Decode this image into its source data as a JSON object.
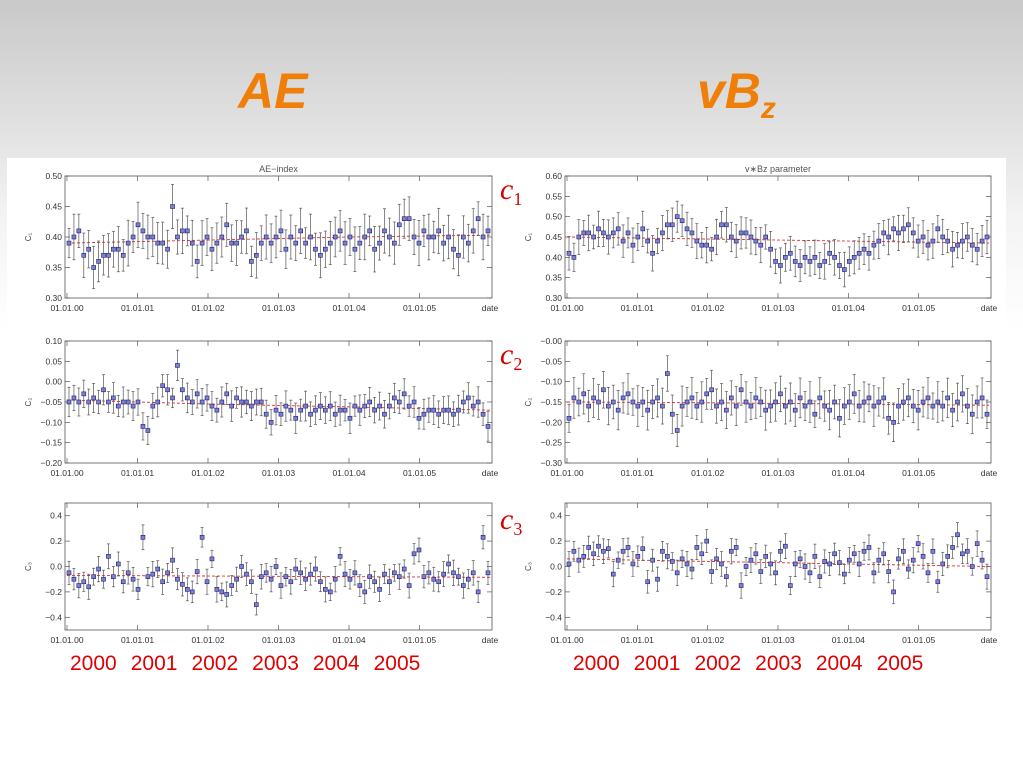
{
  "slide": {
    "col_left_title": "AE",
    "col_right_title_main": "vB",
    "col_right_title_sub": "z",
    "rows": [
      {
        "main": "c",
        "sub": "1"
      },
      {
        "main": "c",
        "sub": "2"
      },
      {
        "main": "c",
        "sub": "3"
      }
    ],
    "years_left": [
      "2000",
      "2001",
      "2002",
      "2003",
      "2004",
      "2005"
    ],
    "years_right": [
      "2000",
      "2001",
      "2002",
      "2003",
      "2004",
      "2005"
    ]
  },
  "colors": {
    "title": "#f07f09",
    "row_label": "#d40000",
    "years": "#e00000",
    "marker_fill": "#7b7fd8",
    "marker_edge": "#202060",
    "trend": "#e03030",
    "errorbar": "#555555"
  },
  "chart_data": [
    {
      "id": "ae-c1",
      "type": "scatter",
      "title": "AE−index",
      "ylabel": "C₁",
      "xlabel": "date",
      "ylim": [
        0.3,
        0.5
      ],
      "yticks": [
        "0.50",
        "0.45",
        "0.40",
        "0.35",
        "0.30"
      ],
      "ytick_values": [
        0.5,
        0.45,
        0.4,
        0.35,
        0.3
      ],
      "xticks": [
        "01.01.00",
        "01.01.01",
        "01.01.02",
        "01.01.03",
        "01.01.04",
        "01.01.05",
        "date"
      ],
      "trend": [
        0.39,
        0.395,
        0.4,
        0.403
      ],
      "y": [
        0.39,
        0.4,
        0.41,
        0.37,
        0.38,
        0.35,
        0.36,
        0.37,
        0.37,
        0.38,
        0.38,
        0.37,
        0.39,
        0.4,
        0.42,
        0.41,
        0.4,
        0.4,
        0.39,
        0.39,
        0.38,
        0.45,
        0.4,
        0.41,
        0.41,
        0.39,
        0.36,
        0.39,
        0.4,
        0.38,
        0.39,
        0.4,
        0.42,
        0.39,
        0.39,
        0.4,
        0.41,
        0.36,
        0.37,
        0.39,
        0.4,
        0.39,
        0.4,
        0.41,
        0.38,
        0.4,
        0.39,
        0.41,
        0.39,
        0.4,
        0.38,
        0.37,
        0.38,
        0.39,
        0.4,
        0.41,
        0.39,
        0.4,
        0.38,
        0.39,
        0.4,
        0.41,
        0.38,
        0.39,
        0.41,
        0.4,
        0.39,
        0.42,
        0.43,
        0.43,
        0.4,
        0.39,
        0.41,
        0.4,
        0.4,
        0.41,
        0.39,
        0.4,
        0.38,
        0.37,
        0.4,
        0.39,
        0.41,
        0.43,
        0.4,
        0.41
      ],
      "err": 0.03
    },
    {
      "id": "vbz-c1",
      "type": "scatter",
      "title": "v∗Bz  parameter",
      "ylabel": "C₁",
      "xlabel": "date",
      "ylim": [
        0.3,
        0.6
      ],
      "yticks": [
        "0.60",
        "0.55",
        "0.50",
        "0.45",
        "0.40",
        "0.35",
        "0.30"
      ],
      "ytick_values": [
        0.6,
        0.55,
        0.5,
        0.45,
        0.4,
        0.35,
        0.3
      ],
      "xticks": [
        "01.01.00",
        "01.01.01",
        "01.01.02",
        "01.01.03",
        "01.01.04",
        "01.01.05",
        "date"
      ],
      "trend": [
        0.45,
        0.445,
        0.44,
        0.435
      ],
      "y": [
        0.41,
        0.4,
        0.45,
        0.46,
        0.46,
        0.45,
        0.47,
        0.46,
        0.45,
        0.46,
        0.47,
        0.44,
        0.46,
        0.43,
        0.45,
        0.47,
        0.44,
        0.41,
        0.44,
        0.46,
        0.48,
        0.48,
        0.5,
        0.49,
        0.47,
        0.46,
        0.44,
        0.43,
        0.43,
        0.42,
        0.45,
        0.48,
        0.48,
        0.45,
        0.44,
        0.46,
        0.46,
        0.45,
        0.44,
        0.43,
        0.45,
        0.42,
        0.39,
        0.38,
        0.4,
        0.41,
        0.39,
        0.38,
        0.4,
        0.39,
        0.4,
        0.38,
        0.39,
        0.41,
        0.4,
        0.38,
        0.37,
        0.39,
        0.4,
        0.41,
        0.42,
        0.41,
        0.43,
        0.44,
        0.46,
        0.45,
        0.47,
        0.46,
        0.47,
        0.48,
        0.46,
        0.44,
        0.45,
        0.43,
        0.44,
        0.47,
        0.45,
        0.44,
        0.42,
        0.43,
        0.44,
        0.45,
        0.43,
        0.42,
        0.44,
        0.45
      ],
      "err": 0.035
    },
    {
      "id": "ae-c2",
      "type": "scatter",
      "title": "",
      "ylabel": "C₂",
      "xlabel": "date",
      "ylim": [
        -0.2,
        0.1
      ],
      "yticks": [
        "0.10",
        "0.05",
        "0.00",
        "−0.05",
        "−0.10",
        "−0.15",
        "−0.20"
      ],
      "ytick_values": [
        0.1,
        0.05,
        0.0,
        -0.05,
        -0.1,
        -0.15,
        -0.2
      ],
      "xticks": [
        "01.01.00",
        "01.01.01",
        "01.01.02",
        "01.01.03",
        "01.01.04",
        "01.01.05",
        "date"
      ],
      "trend": [
        -0.045,
        -0.055,
        -0.062,
        -0.07
      ],
      "y": [
        -0.05,
        -0.04,
        -0.05,
        -0.03,
        -0.05,
        -0.04,
        -0.05,
        -0.02,
        -0.05,
        -0.04,
        -0.06,
        -0.05,
        -0.05,
        -0.06,
        -0.05,
        -0.11,
        -0.12,
        -0.06,
        -0.05,
        -0.01,
        -0.02,
        -0.04,
        0.04,
        -0.02,
        -0.04,
        -0.05,
        -0.03,
        -0.05,
        -0.04,
        -0.06,
        -0.07,
        -0.05,
        -0.03,
        -0.06,
        -0.04,
        -0.05,
        -0.05,
        -0.06,
        -0.05,
        -0.05,
        -0.08,
        -0.1,
        -0.07,
        -0.08,
        -0.06,
        -0.07,
        -0.09,
        -0.07,
        -0.06,
        -0.08,
        -0.07,
        -0.06,
        -0.07,
        -0.06,
        -0.08,
        -0.07,
        -0.07,
        -0.09,
        -0.06,
        -0.07,
        -0.06,
        -0.05,
        -0.07,
        -0.06,
        -0.08,
        -0.06,
        -0.04,
        -0.05,
        -0.03,
        -0.06,
        -0.05,
        -0.09,
        -0.08,
        -0.07,
        -0.07,
        -0.08,
        -0.07,
        -0.07,
        -0.08,
        -0.07,
        -0.05,
        -0.04,
        -0.06,
        -0.05,
        -0.08,
        -0.11
      ],
      "err": 0.03
    },
    {
      "id": "vbz-c2",
      "type": "scatter",
      "title": "",
      "ylabel": "C₂",
      "xlabel": "date",
      "ylim": [
        -0.3,
        0.0
      ],
      "yticks": [
        "−0.00",
        "−0.05",
        "−0.10",
        "−0.15",
        "−0.20",
        "−0.25",
        "−0.30"
      ],
      "ytick_values": [
        0.0,
        -0.05,
        -0.1,
        -0.15,
        -0.2,
        -0.25,
        -0.3
      ],
      "xticks": [
        "01.01.00",
        "01.01.01",
        "01.01.02",
        "01.01.03",
        "01.01.04",
        "01.01.05",
        "date"
      ],
      "trend": [
        -0.15,
        -0.152,
        -0.155,
        -0.158
      ],
      "y": [
        -0.19,
        -0.14,
        -0.15,
        -0.13,
        -0.16,
        -0.14,
        -0.15,
        -0.12,
        -0.16,
        -0.15,
        -0.17,
        -0.14,
        -0.13,
        -0.15,
        -0.16,
        -0.15,
        -0.17,
        -0.15,
        -0.14,
        -0.16,
        -0.08,
        -0.18,
        -0.22,
        -0.16,
        -0.15,
        -0.14,
        -0.16,
        -0.15,
        -0.13,
        -0.12,
        -0.16,
        -0.15,
        -0.17,
        -0.14,
        -0.16,
        -0.12,
        -0.15,
        -0.16,
        -0.14,
        -0.15,
        -0.17,
        -0.16,
        -0.15,
        -0.13,
        -0.16,
        -0.15,
        -0.17,
        -0.14,
        -0.16,
        -0.15,
        -0.18,
        -0.14,
        -0.16,
        -0.17,
        -0.15,
        -0.19,
        -0.16,
        -0.15,
        -0.13,
        -0.16,
        -0.15,
        -0.14,
        -0.16,
        -0.15,
        -0.14,
        -0.19,
        -0.2,
        -0.16,
        -0.15,
        -0.14,
        -0.16,
        -0.17,
        -0.15,
        -0.14,
        -0.16,
        -0.15,
        -0.16,
        -0.14,
        -0.17,
        -0.15,
        -0.13,
        -0.16,
        -0.18,
        -0.15,
        -0.14,
        -0.18
      ],
      "err": 0.04
    },
    {
      "id": "ae-c3",
      "type": "scatter",
      "title": "",
      "ylabel": "C₃",
      "xlabel": "date",
      "ylim": [
        -0.5,
        0.5
      ],
      "yticks": [
        "0.4",
        "0.2",
        "0.0",
        "−0.2",
        "−0.4"
      ],
      "ytick_values": [
        0.4,
        0.2,
        0.0,
        -0.2,
        -0.4
      ],
      "xticks": [
        "01.01.00",
        "01.01.01",
        "01.01.02",
        "01.01.03",
        "01.01.04",
        "01.01.05",
        "date"
      ],
      "trend": [
        -0.07,
        -0.075,
        -0.08,
        -0.085
      ],
      "y": [
        -0.05,
        -0.1,
        -0.15,
        -0.12,
        -0.16,
        -0.08,
        -0.02,
        -0.1,
        0.08,
        -0.08,
        0.02,
        -0.12,
        -0.05,
        -0.1,
        -0.18,
        0.23,
        -0.08,
        -0.06,
        -0.02,
        -0.12,
        -0.05,
        0.05,
        -0.1,
        -0.14,
        -0.18,
        -0.2,
        -0.04,
        0.23,
        -0.12,
        0.06,
        -0.18,
        -0.2,
        -0.22,
        -0.15,
        -0.1,
        0.0,
        -0.06,
        -0.12,
        -0.3,
        -0.08,
        -0.05,
        -0.1,
        0.0,
        -0.15,
        -0.08,
        -0.12,
        -0.02,
        -0.05,
        -0.1,
        -0.06,
        -0.02,
        -0.12,
        -0.18,
        -0.2,
        -0.1,
        0.08,
        -0.06,
        -0.1,
        -0.05,
        -0.15,
        -0.2,
        -0.08,
        -0.12,
        -0.18,
        -0.06,
        -0.12,
        -0.05,
        -0.08,
        -0.02,
        -0.15,
        0.1,
        0.13,
        -0.08,
        -0.05,
        -0.1,
        -0.12,
        -0.06,
        0.02,
        -0.05,
        -0.08,
        -0.15,
        -0.1,
        -0.05,
        -0.2,
        0.23,
        -0.05
      ],
      "err": 0.08
    },
    {
      "id": "vbz-c3",
      "type": "scatter",
      "title": "",
      "ylabel": "C₃",
      "xlabel": "date",
      "ylim": [
        -0.5,
        0.5
      ],
      "yticks": [
        "0.4",
        "0.2",
        "0.0",
        "−0.2",
        "−0.4"
      ],
      "ytick_values": [
        0.4,
        0.2,
        0.0,
        -0.2,
        -0.4
      ],
      "xticks": [
        "01.01.00",
        "01.01.01",
        "01.01.02",
        "01.01.03",
        "01.01.04",
        "01.01.05",
        "date"
      ],
      "trend": [
        0.06,
        0.04,
        0.02,
        0.0
      ],
      "y": [
        0.02,
        0.12,
        0.05,
        0.08,
        0.15,
        0.1,
        0.16,
        0.12,
        0.14,
        -0.06,
        0.05,
        0.12,
        0.15,
        0.02,
        0.08,
        0.14,
        -0.12,
        0.05,
        -0.1,
        0.12,
        0.08,
        0.04,
        -0.05,
        0.06,
        0.02,
        -0.02,
        0.15,
        0.1,
        0.2,
        -0.04,
        0.06,
        0.02,
        -0.08,
        0.12,
        0.15,
        -0.15,
        0.0,
        0.05,
        0.1,
        -0.04,
        0.08,
        0.02,
        -0.05,
        0.12,
        0.16,
        -0.15,
        0.02,
        0.06,
        0.0,
        -0.05,
        0.08,
        -0.08,
        0.04,
        0.02,
        0.1,
        0.03,
        -0.06,
        0.05,
        0.1,
        0.02,
        0.12,
        0.15,
        -0.05,
        0.05,
        0.1,
        -0.04,
        -0.2,
        0.06,
        0.12,
        -0.02,
        0.05,
        0.18,
        0.08,
        -0.05,
        0.12,
        -0.12,
        0.02,
        0.08,
        0.15,
        0.25,
        0.1,
        0.12,
        0.0,
        0.18,
        0.05,
        -0.08
      ],
      "err": 0.08
    }
  ]
}
